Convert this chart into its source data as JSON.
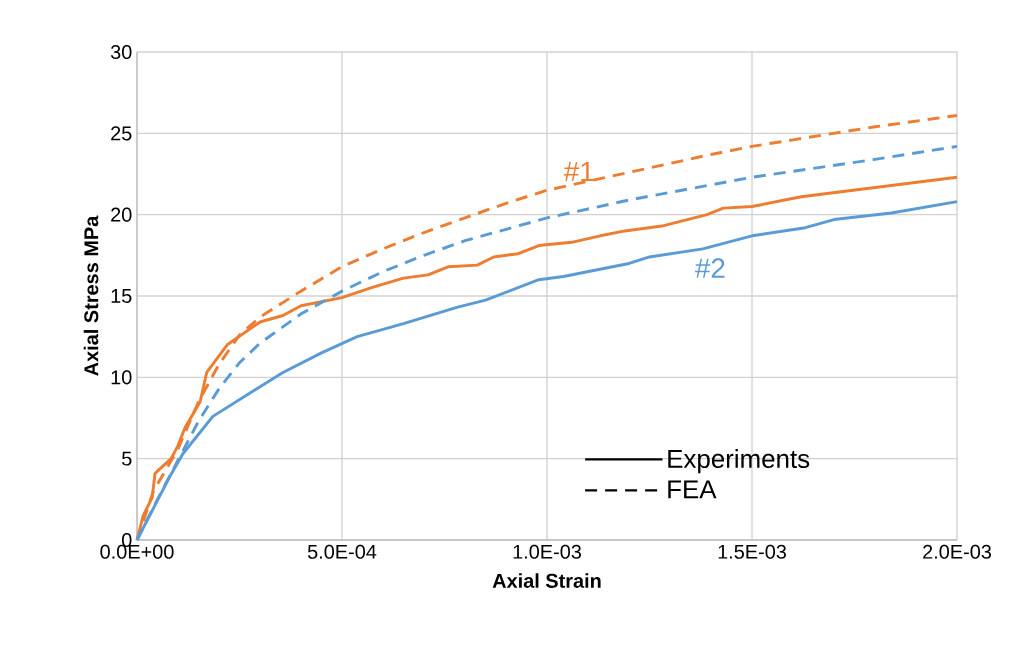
{
  "chart_data": {
    "type": "line",
    "xlabel": "Axial Strain",
    "ylabel": "Axial Stress MPa",
    "xlim": [
      0,
      0.002
    ],
    "ylim": [
      0,
      30
    ],
    "xticks": [
      {
        "value": 0,
        "label": "0.0E+00"
      },
      {
        "value": 0.0005,
        "label": "5.0E-04"
      },
      {
        "value": 0.001,
        "label": "1.0E-03"
      },
      {
        "value": 0.0015,
        "label": "1.5E-03"
      },
      {
        "value": 0.002,
        "label": "2.0E-03"
      }
    ],
    "yticks": [
      0,
      5,
      10,
      15,
      20,
      25,
      30
    ],
    "grid": true,
    "legend": "bottom right",
    "marker": "none",
    "series": [
      {
        "color": "#ed7d31",
        "line_style": "solid",
        "x": [
          0,
          1.5e-05,
          3.7e-05,
          4.4e-05,
          8.3e-05,
          0.0001,
          0.000117,
          0.000154,
          0.00017,
          0.00022,
          0.0003,
          0.000356,
          0.0004,
          0.0005,
          0.00057,
          0.00065,
          0.00071,
          0.00076,
          0.00083,
          0.00087,
          0.00093,
          0.00098,
          0.00106,
          0.00113,
          0.00119,
          0.00128,
          0.00139,
          0.00143,
          0.0015,
          0.00162,
          0.00181,
          0.002
        ],
        "values": [
          0,
          1.5,
          2.6,
          4.1,
          5.0,
          5.8,
          6.9,
          8.5,
          10.3,
          12.0,
          13.4,
          13.8,
          14.4,
          14.9,
          15.5,
          16.1,
          16.3,
          16.8,
          16.9,
          17.4,
          17.6,
          18.1,
          18.3,
          18.7,
          19.0,
          19.3,
          20.0,
          20.4,
          20.5,
          21.1,
          21.7,
          22.3
        ]
      },
      {
        "color": "#ed7d31",
        "line_style": "dashed",
        "x": [
          0,
          4e-05,
          0.0001,
          0.00015,
          0.0002,
          0.00025,
          0.0003,
          0.0004,
          0.0005,
          0.0006,
          0.0007,
          0.0008,
          0.0009,
          0.001,
          0.0012,
          0.0014,
          0.0015,
          0.0016,
          0.0018,
          0.002
        ],
        "values": [
          0,
          3.0,
          5.6,
          8.5,
          10.8,
          12.6,
          13.7,
          15.3,
          16.8,
          17.9,
          18.9,
          19.8,
          20.7,
          21.5,
          22.6,
          23.7,
          24.2,
          24.6,
          25.4,
          26.1
        ]
      },
      {
        "color": "#5b9bd5",
        "line_style": "solid",
        "x": [
          0,
          8e-05,
          0.000112,
          0.000185,
          0.000356,
          0.00045,
          0.000537,
          0.00065,
          0.00078,
          0.00085,
          0.00098,
          0.00104,
          0.0012,
          0.00125,
          0.00138,
          0.0015,
          0.00163,
          0.0017,
          0.00184,
          0.002
        ],
        "values": [
          0,
          3.9,
          5.3,
          7.6,
          10.3,
          11.5,
          12.5,
          13.3,
          14.3,
          14.75,
          16.0,
          16.2,
          17.0,
          17.4,
          17.9,
          18.7,
          19.2,
          19.7,
          20.1,
          20.8
        ]
      },
      {
        "color": "#5b9bd5",
        "line_style": "dashed",
        "x": [
          0,
          5e-05,
          0.0001,
          0.00015,
          0.0002,
          0.00025,
          0.0003,
          0.0004,
          0.0005,
          0.0006,
          0.0007,
          0.0008,
          0.0009,
          0.001,
          0.0012,
          0.0015,
          0.0018,
          0.002
        ],
        "values": [
          0,
          2.5,
          4.9,
          7.3,
          9.3,
          10.9,
          12.1,
          13.9,
          15.3,
          16.5,
          17.5,
          18.4,
          19.1,
          19.8,
          20.9,
          22.3,
          23.4,
          24.2
        ]
      },
      {
        "name": "Experiments",
        "color": "#000000",
        "line_style": "solid"
      },
      {
        "name": "FEA",
        "color": "#000000",
        "line_style": "dashed"
      }
    ],
    "annotations": [
      "#1",
      "#2"
    ]
  }
}
